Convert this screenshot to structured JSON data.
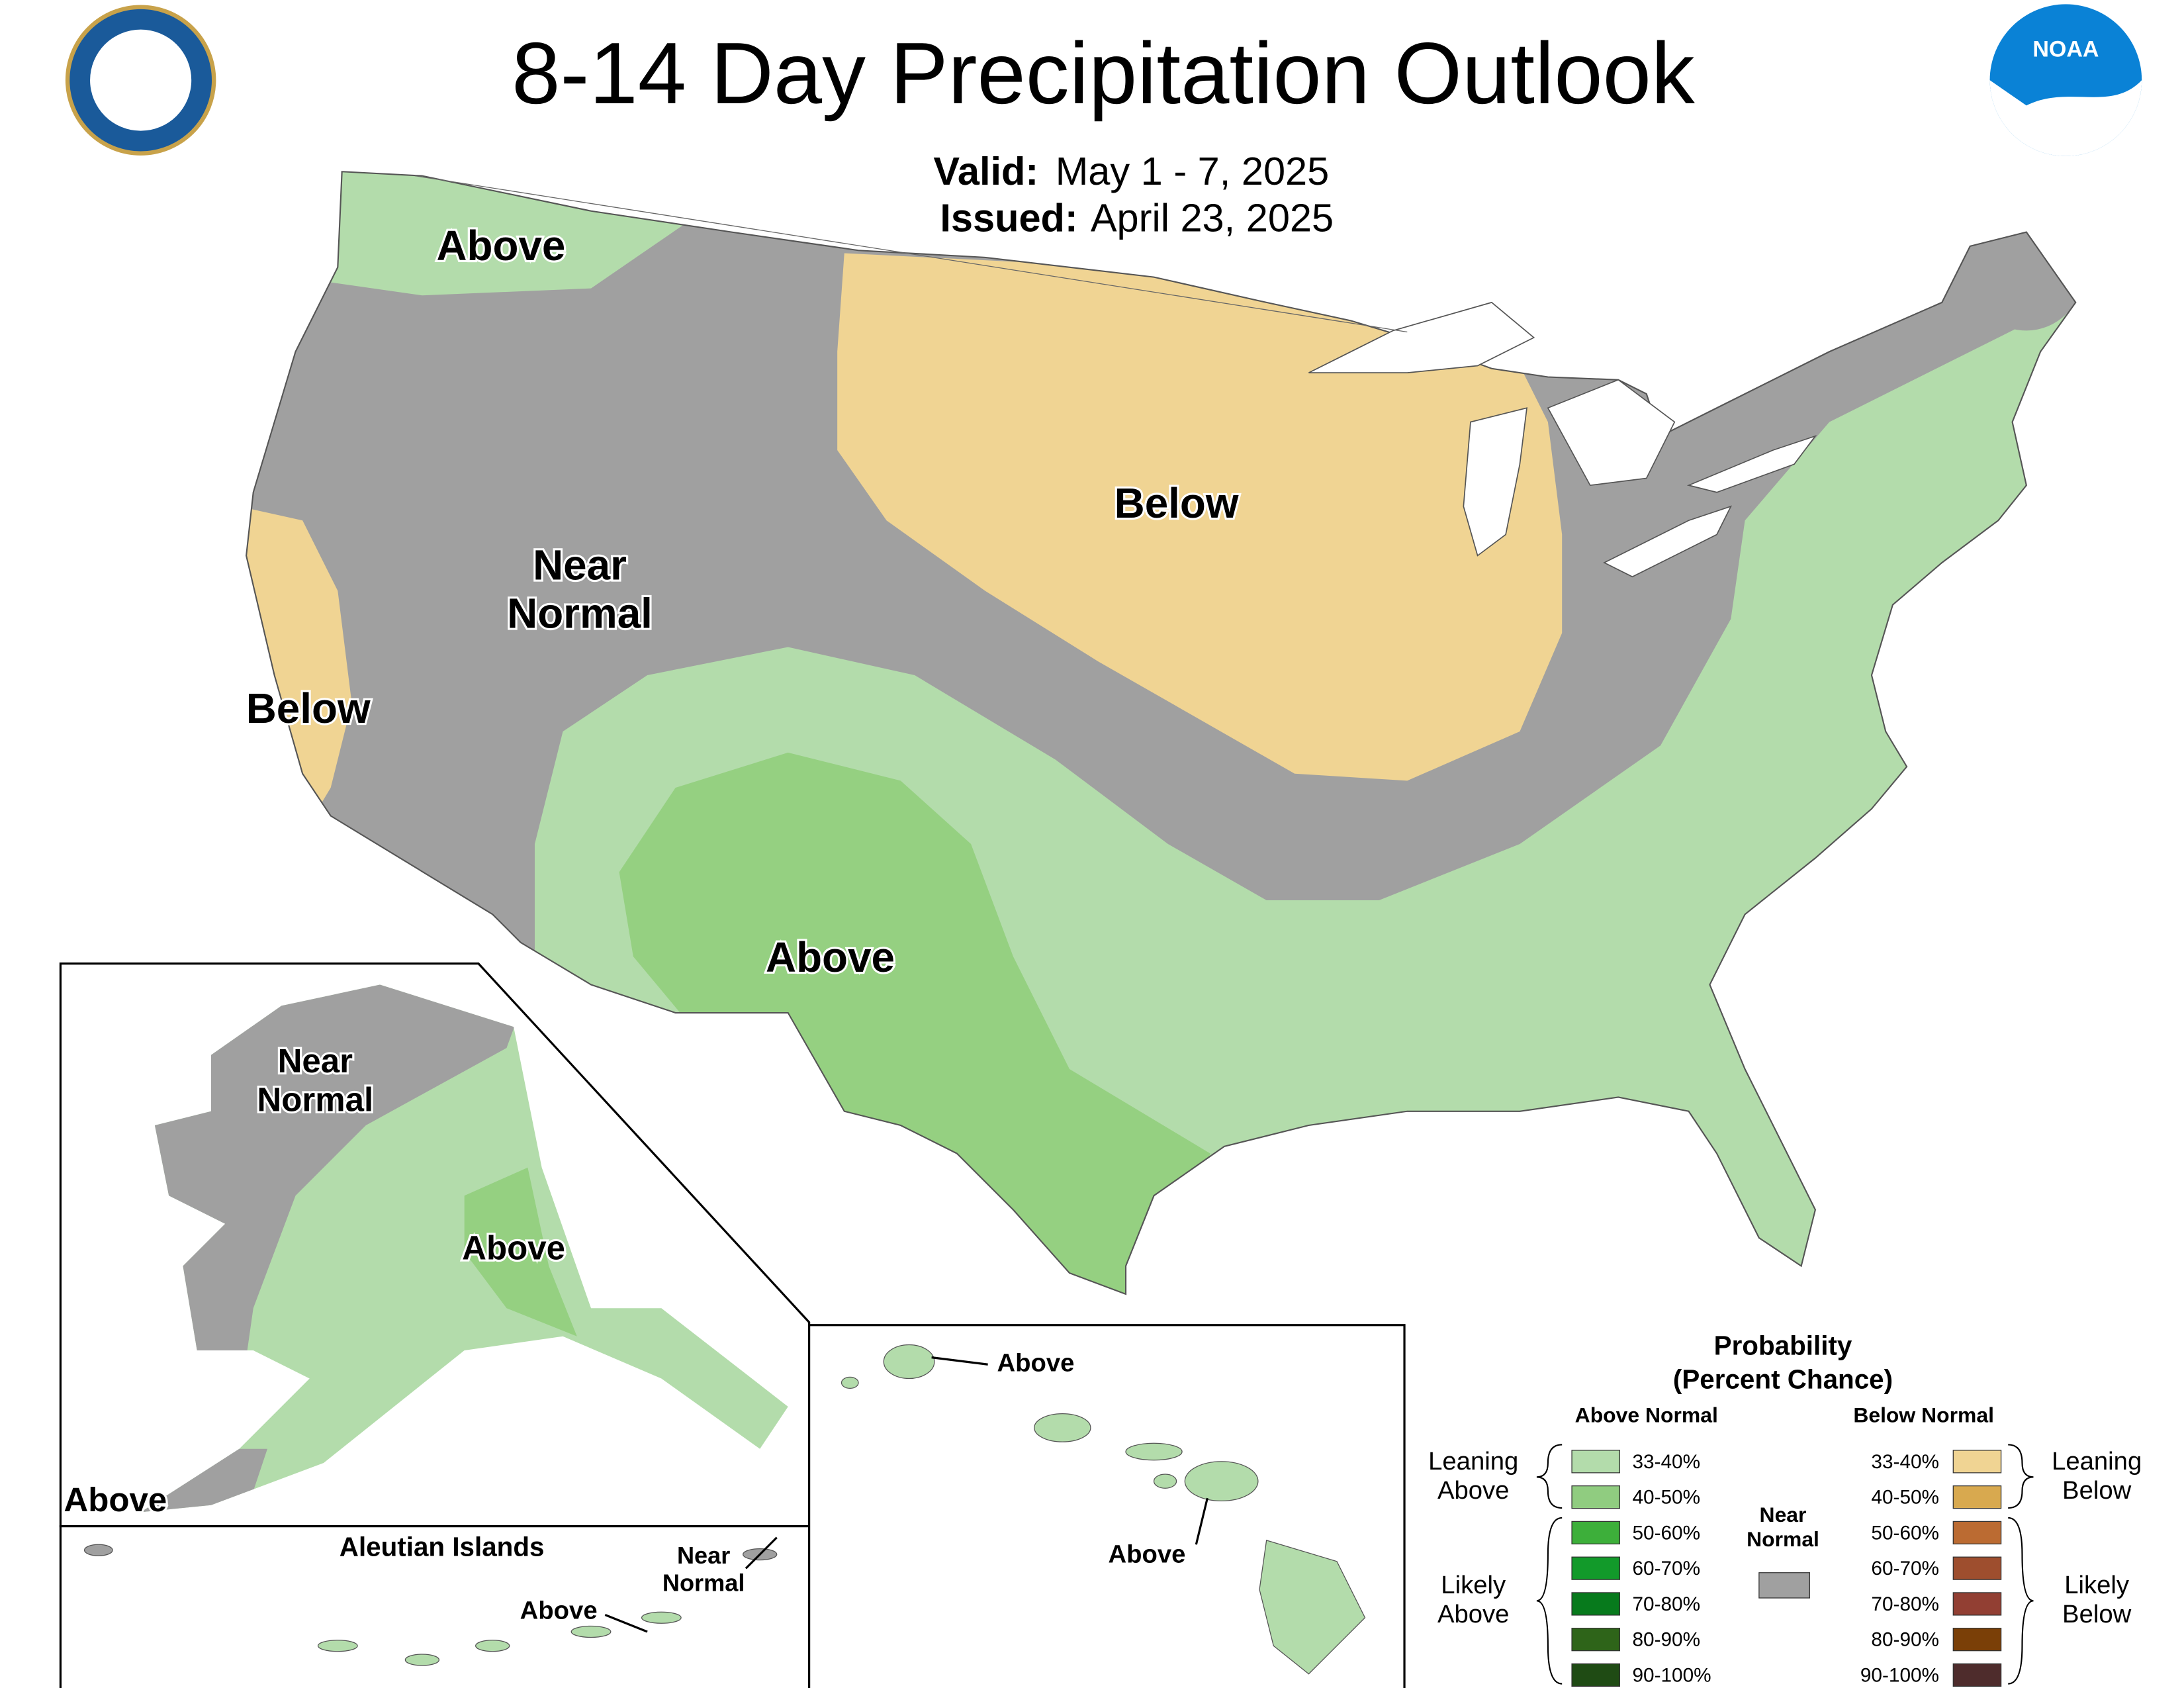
{
  "header": {
    "title": "8-14 Day Precipitation Outlook",
    "valid_label": "Valid:",
    "valid": "May 1 - 7, 2025",
    "issued_label": "Issued:",
    "issued": "April 23, 2025",
    "noaa": "NOAA"
  },
  "labels": {
    "conus_nw": [
      "Above"
    ],
    "conus_north": [
      "Below"
    ],
    "conus_west": [
      "Near",
      "Normal"
    ],
    "conus_ca": [
      "Below"
    ],
    "conus_south": [
      "Above"
    ],
    "ak_nw": [
      "Near",
      "Normal"
    ],
    "ak_se": [
      "Above"
    ],
    "ak_sw": [
      "Above"
    ],
    "aleutian_title": [
      "Aleutian Islands"
    ],
    "aleutian_above": [
      "Above"
    ],
    "aleutian_near": [
      "Near",
      "Normal"
    ],
    "hi_north": [
      "Above"
    ],
    "hi_south": [
      "Above"
    ]
  },
  "legend": {
    "title": "Probability",
    "subtitle": "(Percent Chance)",
    "above_heading": "Above Normal",
    "below_heading": "Below Normal",
    "near_normal": [
      "Near",
      "Normal"
    ],
    "near_normal_color": "#a0a0a0",
    "leaning_above": [
      "Leaning",
      "Above"
    ],
    "likely_above": [
      "Likely",
      "Above"
    ],
    "leaning_below": [
      "Leaning",
      "Below"
    ],
    "likely_below": [
      "Likely",
      "Below"
    ],
    "above": [
      {
        "label": "33-40%",
        "color": "#b3dcab"
      },
      {
        "label": "40-50%",
        "color": "#90cc80"
      },
      {
        "label": "50-60%",
        "color": "#3daf3a"
      },
      {
        "label": "60-70%",
        "color": "#129a2a"
      },
      {
        "label": "70-80%",
        "color": "#077a1c"
      },
      {
        "label": "80-90%",
        "color": "#2e6419"
      },
      {
        "label": "90-100%",
        "color": "#1f4b14"
      }
    ],
    "below": [
      {
        "label": "33-40%",
        "color": "#f0d493"
      },
      {
        "label": "40-50%",
        "color": "#d8a94f"
      },
      {
        "label": "50-60%",
        "color": "#bb6b32"
      },
      {
        "label": "60-70%",
        "color": "#9e4e2e"
      },
      {
        "label": "70-80%",
        "color": "#923f33"
      },
      {
        "label": "80-90%",
        "color": "#7a3f07"
      },
      {
        "label": "90-100%",
        "color": "#4e2c2c"
      }
    ]
  }
}
